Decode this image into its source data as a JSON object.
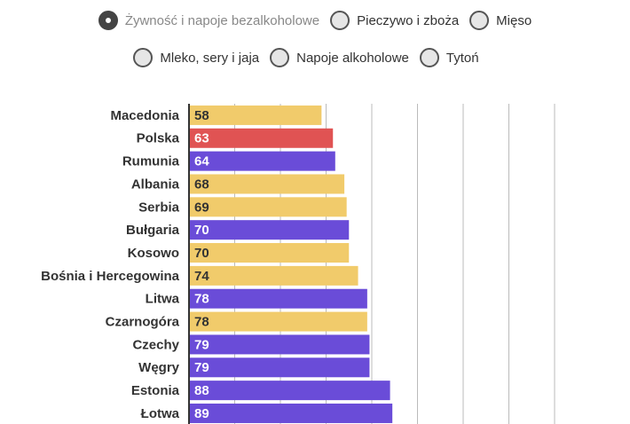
{
  "filters": {
    "options": [
      "Żywność i napoje bezalkoholowe",
      "Pieczywo i zboża",
      "Mięso",
      "Mleko, sery i jaja",
      "Napoje alkoholowe",
      "Tytoń"
    ],
    "selected": 0
  },
  "chart_data": {
    "type": "hbar",
    "categories": [
      "Macedonia",
      "Polska",
      "Rumunia",
      "Albania",
      "Serbia",
      "Bułgaria",
      "Kosowo",
      "Bośnia i Hercegowina",
      "Litwa",
      "Czarnogóra",
      "Czechy",
      "Węgry",
      "Estonia",
      "Łotwa"
    ],
    "values": [
      58,
      63,
      64,
      68,
      69,
      70,
      70,
      74,
      78,
      78,
      79,
      79,
      88,
      89
    ],
    "colors": [
      "#f1cb6b",
      "#e05353",
      "#6a4cd8",
      "#f1cb6b",
      "#f1cb6b",
      "#6a4cd8",
      "#f1cb6b",
      "#f1cb6b",
      "#6a4cd8",
      "#f1cb6b",
      "#6a4cd8",
      "#6a4cd8",
      "#6a4cd8",
      "#6a4cd8"
    ],
    "xlim": [
      0,
      160
    ],
    "xticks": [
      0,
      20,
      40,
      60,
      80,
      100,
      120,
      140,
      160
    ],
    "grid": true
  }
}
